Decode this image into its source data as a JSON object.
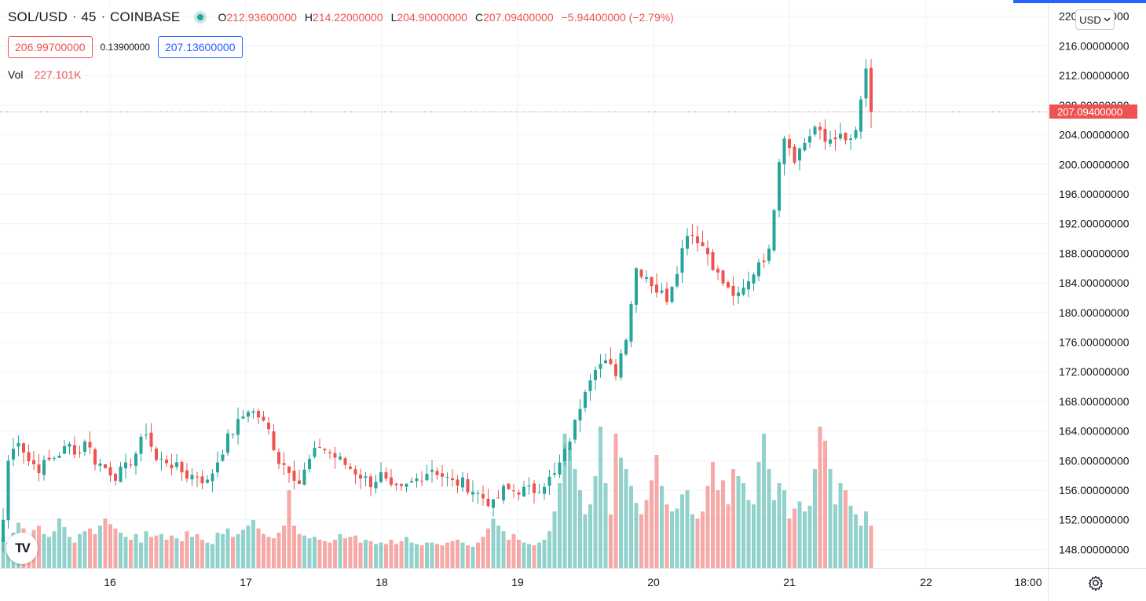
{
  "header": {
    "symbol": "SOL/USD",
    "interval": "45",
    "exchange": "COINBASE",
    "open_label": "O",
    "open": "212.93600000",
    "high_label": "H",
    "high": "214.22000000",
    "low_label": "L",
    "low": "204.90000000",
    "close_label": "C",
    "close": "207.09400000",
    "change": "−5.94400000 (−2.79%)"
  },
  "quote": {
    "bid": "206.99700000",
    "spread": "0.13900000",
    "ask": "207.13600000"
  },
  "volume": {
    "label": "Vol",
    "value": "227.101K"
  },
  "currency_button": {
    "label": "USD",
    "chevron_icon": "chevron-down-icon"
  },
  "last_price_badge": "207.09400000",
  "logo": "TV",
  "colors": {
    "up": "#26a69a",
    "down": "#ef5350",
    "grid": "#f0f3fa",
    "accent": "#2962ff"
  },
  "chart_data": {
    "type": "candlestick",
    "y_axis_ticks": [
      "148.00000000",
      "152.00000000",
      "156.00000000",
      "160.00000000",
      "164.00000000",
      "168.00000000",
      "172.00000000",
      "176.00000000",
      "180.00000000",
      "184.00000000",
      "188.00000000",
      "192.00000000",
      "196.00000000",
      "200.00000000",
      "204.00000000",
      "208.00000000",
      "212.00000000",
      "216.00000000",
      "220.00000000"
    ],
    "y_range": [
      145.5,
      222.2
    ],
    "x_axis_ticks": [
      "16",
      "17",
      "18",
      "19",
      "20",
      "21",
      "22",
      "18:00"
    ],
    "last_price": 207.094,
    "close_path": [
      [
        0,
        152
      ],
      [
        1,
        160
      ],
      [
        3,
        163
      ],
      [
        5,
        160
      ],
      [
        7,
        159
      ],
      [
        9,
        160
      ],
      [
        11,
        161
      ],
      [
        13,
        162
      ],
      [
        15,
        161
      ],
      [
        16,
        163
      ],
      [
        18,
        160
      ],
      [
        20,
        159
      ],
      [
        22,
        158
      ],
      [
        24,
        159
      ],
      [
        26,
        161
      ],
      [
        28,
        164
      ],
      [
        30,
        160
      ],
      [
        32,
        160
      ],
      [
        34,
        159
      ],
      [
        36,
        158
      ],
      [
        38,
        158
      ],
      [
        40,
        157
      ],
      [
        42,
        160
      ],
      [
        44,
        163
      ],
      [
        46,
        165
      ],
      [
        48,
        167
      ],
      [
        50,
        166
      ],
      [
        52,
        164
      ],
      [
        54,
        160
      ],
      [
        56,
        159
      ],
      [
        58,
        157
      ],
      [
        60,
        160
      ],
      [
        62,
        162
      ],
      [
        64,
        161
      ],
      [
        66,
        160
      ],
      [
        68,
        159
      ],
      [
        70,
        158
      ],
      [
        72,
        157
      ],
      [
        74,
        158
      ],
      [
        76,
        156
      ],
      [
        78,
        156
      ],
      [
        80,
        157
      ],
      [
        82,
        158
      ],
      [
        84,
        159
      ],
      [
        86,
        158
      ],
      [
        88,
        157
      ],
      [
        90,
        157
      ],
      [
        92,
        156
      ],
      [
        94,
        155
      ],
      [
        96,
        154
      ],
      [
        98,
        156
      ],
      [
        100,
        156
      ],
      [
        102,
        156
      ],
      [
        104,
        156
      ],
      [
        106,
        157
      ],
      [
        108,
        158
      ],
      [
        110,
        161
      ],
      [
        112,
        165
      ],
      [
        114,
        170
      ],
      [
        116,
        173
      ],
      [
        118,
        173
      ],
      [
        120,
        172
      ],
      [
        122,
        177
      ],
      [
        124,
        186
      ],
      [
        126,
        185
      ],
      [
        128,
        183
      ],
      [
        130,
        182
      ],
      [
        132,
        186
      ],
      [
        134,
        191
      ],
      [
        136,
        190
      ],
      [
        138,
        188
      ],
      [
        140,
        185
      ],
      [
        142,
        183
      ],
      [
        144,
        182
      ],
      [
        146,
        184
      ],
      [
        148,
        187
      ],
      [
        150,
        188
      ],
      [
        152,
        201
      ],
      [
        153,
        204
      ],
      [
        155,
        201
      ],
      [
        157,
        203
      ],
      [
        159,
        205
      ],
      [
        161,
        203
      ],
      [
        163,
        204
      ],
      [
        165,
        203
      ],
      [
        167,
        204
      ],
      [
        169,
        213
      ],
      [
        170,
        207.094
      ]
    ],
    "volumes": [
      22,
      18,
      25,
      32,
      28,
      20,
      27,
      30,
      24,
      22,
      26,
      35,
      29,
      22,
      18,
      24,
      26,
      28,
      24,
      30,
      35,
      31,
      28,
      25,
      22,
      20,
      24,
      18,
      26,
      22,
      23,
      24,
      20,
      23,
      21,
      19,
      26,
      22,
      24,
      20,
      18,
      17,
      25,
      24,
      28,
      22,
      24,
      27,
      30,
      34,
      28,
      24,
      22,
      21,
      25,
      30,
      55,
      30,
      24,
      23,
      21,
      22,
      20,
      19,
      18,
      20,
      24,
      21,
      22,
      23,
      18,
      20,
      19,
      17,
      18,
      17,
      20,
      17,
      19,
      22,
      18,
      17,
      16,
      18,
      18,
      17,
      16,
      18,
      19,
      20,
      18,
      16,
      15,
      18,
      22,
      28,
      35,
      30,
      26,
      20,
      24,
      20,
      18,
      17,
      16,
      18,
      20,
      26,
      40,
      60,
      95,
      85,
      70,
      55,
      38,
      45,
      65,
      100,
      60,
      38,
      95,
      78,
      70,
      58,
      46,
      38,
      48,
      62,
      80,
      58,
      45,
      40,
      42,
      52,
      55,
      38,
      35,
      40,
      58,
      75,
      55,
      62,
      45,
      70,
      65,
      60,
      48,
      45,
      75,
      95,
      70,
      48,
      60,
      55,
      35,
      42,
      47,
      40,
      44,
      70,
      100,
      90,
      70,
      45,
      60,
      55,
      44,
      38,
      30,
      40,
      30,
      32,
      35,
      64,
      90
    ]
  }
}
